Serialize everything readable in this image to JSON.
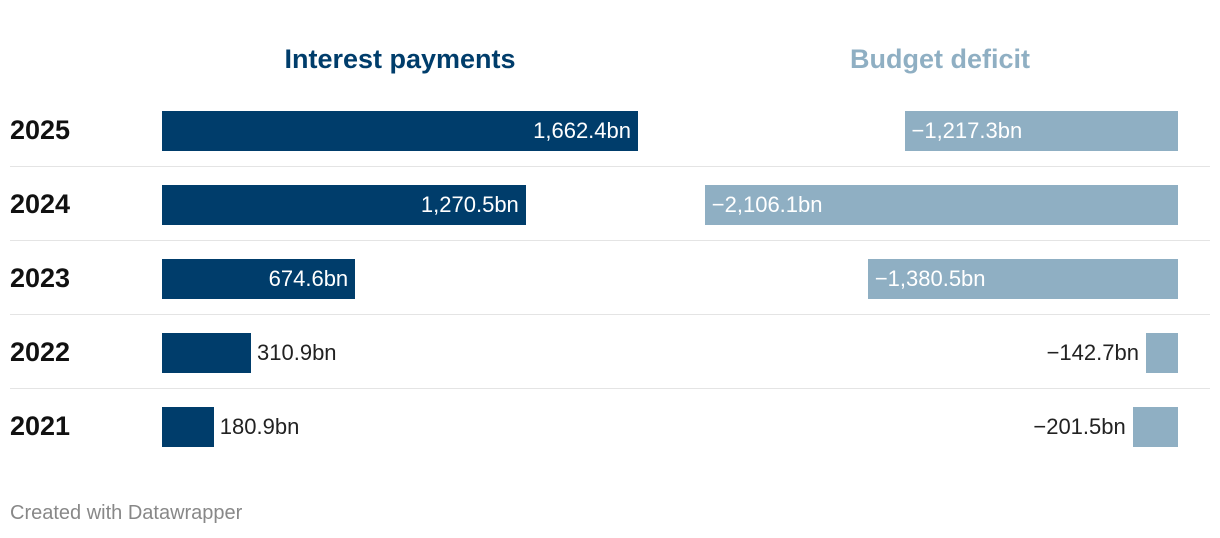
{
  "chart_data": {
    "type": "bar",
    "categories": [
      "2025",
      "2024",
      "2023",
      "2022",
      "2021"
    ],
    "series": [
      {
        "name": "Interest payments",
        "values": [
          1662.4,
          1270.5,
          674.6,
          310.9,
          180.9
        ],
        "labels": [
          "1,662.4bn",
          "1,270.5bn",
          "674.6bn",
          "310.9bn",
          "180.9bn"
        ],
        "color": "#003d6b"
      },
      {
        "name": "Budget deficit",
        "values": [
          -1217.3,
          -2106.1,
          -1380.5,
          -142.7,
          -201.5
        ],
        "labels": [
          "−1,217.3bn",
          "−2,106.1bn",
          "−1,380.5bn",
          "−142.7bn",
          "−201.5bn"
        ],
        "color": "#8fafc3"
      }
    ]
  },
  "footer": "Created with Datawrapper"
}
